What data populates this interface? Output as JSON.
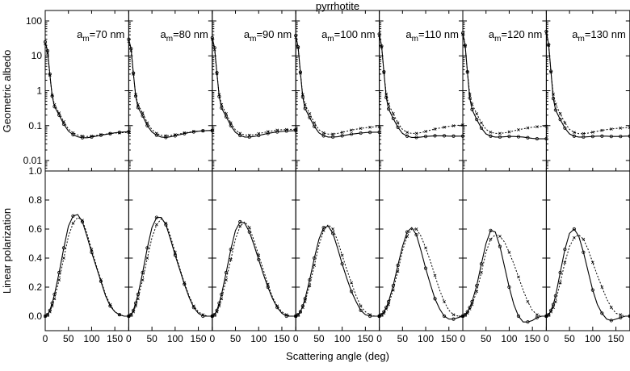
{
  "figure": {
    "title": "pyrrhotite",
    "xlabel": "Scattering angle (deg)",
    "ylabel_top": "Geometric albedo",
    "ylabel_bottom": "Linear polarization"
  },
  "chart_data": {
    "type": "line",
    "title": "pyrrhotite",
    "xlabel": "Scattering angle (deg)",
    "xlim": [
      0,
      180
    ],
    "xticks": [
      "0",
      "50",
      "100",
      "150"
    ],
    "top_row": {
      "ylabel": "Geometric albedo",
      "yscale": "log",
      "ylim": [
        0.005,
        200
      ],
      "yticks": [
        "100",
        "10",
        "1",
        "0.1",
        "0.01"
      ]
    },
    "bottom_row": {
      "ylabel": "Linear polarization",
      "ylim": [
        -0.1,
        1.0
      ],
      "yticks": [
        "1.0",
        "0.8",
        "0.6",
        "0.4",
        "0.2",
        "0.0"
      ]
    },
    "x": [
      0,
      5,
      10,
      15,
      20,
      30,
      40,
      50,
      60,
      70,
      80,
      90,
      100,
      110,
      120,
      130,
      140,
      150,
      160,
      170,
      180
    ],
    "panels": [
      {
        "label_main": "a",
        "label_sub": "m",
        "label_value": "=70 nm",
        "albedo_solid": [
          25,
          14,
          3,
          0.7,
          0.35,
          0.2,
          0.11,
          0.07,
          0.055,
          0.048,
          0.045,
          0.045,
          0.047,
          0.05,
          0.053,
          0.056,
          0.059,
          0.062,
          0.064,
          0.066,
          0.067
        ],
        "albedo_dotted": [
          22,
          12,
          2.8,
          0.75,
          0.4,
          0.23,
          0.13,
          0.08,
          0.062,
          0.054,
          0.05,
          0.049,
          0.05,
          0.052,
          0.055,
          0.057,
          0.059,
          0.061,
          0.062,
          0.063,
          0.064
        ],
        "pol_solid": [
          0.0,
          0.01,
          0.04,
          0.09,
          0.15,
          0.3,
          0.47,
          0.62,
          0.69,
          0.7,
          0.65,
          0.55,
          0.44,
          0.34,
          0.24,
          0.14,
          0.07,
          0.03,
          0.01,
          0.0,
          0.0
        ],
        "pol_dotted": [
          0.0,
          0.01,
          0.03,
          0.07,
          0.12,
          0.25,
          0.4,
          0.55,
          0.64,
          0.68,
          0.66,
          0.57,
          0.46,
          0.35,
          0.25,
          0.15,
          0.08,
          0.03,
          0.01,
          0.0,
          0.0
        ]
      },
      {
        "label_main": "a",
        "label_sub": "m",
        "label_value": "=80 nm",
        "albedo_solid": [
          30,
          16,
          3.2,
          0.7,
          0.33,
          0.19,
          0.1,
          0.066,
          0.053,
          0.047,
          0.046,
          0.048,
          0.051,
          0.055,
          0.059,
          0.063,
          0.066,
          0.069,
          0.071,
          0.072,
          0.073
        ],
        "albedo_dotted": [
          26,
          14,
          3,
          0.78,
          0.4,
          0.23,
          0.12,
          0.077,
          0.06,
          0.053,
          0.051,
          0.052,
          0.055,
          0.058,
          0.062,
          0.065,
          0.068,
          0.07,
          0.071,
          0.072,
          0.072
        ],
        "pol_solid": [
          0.0,
          0.01,
          0.04,
          0.09,
          0.15,
          0.3,
          0.47,
          0.61,
          0.68,
          0.68,
          0.63,
          0.53,
          0.42,
          0.32,
          0.22,
          0.13,
          0.06,
          0.02,
          0.0,
          0.0,
          0.0
        ],
        "pol_dotted": [
          0.0,
          0.01,
          0.03,
          0.07,
          0.12,
          0.25,
          0.4,
          0.54,
          0.63,
          0.67,
          0.64,
          0.55,
          0.44,
          0.33,
          0.23,
          0.14,
          0.07,
          0.03,
          0.01,
          0.0,
          0.0
        ]
      },
      {
        "label_main": "a",
        "label_sub": "m",
        "label_value": "=90 nm",
        "albedo_solid": [
          33,
          17,
          3.3,
          0.68,
          0.32,
          0.18,
          0.1,
          0.064,
          0.052,
          0.047,
          0.047,
          0.049,
          0.052,
          0.056,
          0.06,
          0.063,
          0.066,
          0.068,
          0.07,
          0.071,
          0.072
        ],
        "albedo_dotted": [
          30,
          15,
          3.1,
          0.78,
          0.4,
          0.22,
          0.12,
          0.075,
          0.06,
          0.054,
          0.053,
          0.055,
          0.059,
          0.063,
          0.067,
          0.071,
          0.074,
          0.076,
          0.077,
          0.078,
          0.078
        ],
        "pol_solid": [
          0.0,
          0.01,
          0.04,
          0.09,
          0.15,
          0.3,
          0.46,
          0.59,
          0.65,
          0.64,
          0.58,
          0.49,
          0.39,
          0.29,
          0.2,
          0.12,
          0.06,
          0.02,
          0.0,
          0.0,
          0.0
        ],
        "pol_dotted": [
          0.0,
          0.01,
          0.03,
          0.07,
          0.12,
          0.25,
          0.39,
          0.53,
          0.62,
          0.65,
          0.61,
          0.52,
          0.42,
          0.32,
          0.22,
          0.13,
          0.07,
          0.03,
          0.01,
          0.0,
          0.0
        ]
      },
      {
        "label_main": "a",
        "label_sub": "m",
        "label_value": "=100 nm",
        "albedo_solid": [
          38,
          18,
          3.4,
          0.66,
          0.31,
          0.17,
          0.095,
          0.062,
          0.051,
          0.047,
          0.047,
          0.048,
          0.051,
          0.054,
          0.057,
          0.059,
          0.061,
          0.063,
          0.064,
          0.065,
          0.065
        ],
        "albedo_dotted": [
          34,
          17,
          3.2,
          0.78,
          0.4,
          0.22,
          0.12,
          0.076,
          0.062,
          0.057,
          0.057,
          0.06,
          0.064,
          0.069,
          0.074,
          0.079,
          0.083,
          0.087,
          0.09,
          0.092,
          0.093
        ],
        "pol_solid": [
          0.0,
          0.01,
          0.03,
          0.07,
          0.12,
          0.25,
          0.4,
          0.53,
          0.61,
          0.62,
          0.57,
          0.47,
          0.36,
          0.26,
          0.17,
          0.1,
          0.04,
          0.01,
          0.0,
          0.0,
          0.0
        ],
        "pol_dotted": [
          0.0,
          0.01,
          0.03,
          0.06,
          0.1,
          0.21,
          0.35,
          0.49,
          0.59,
          0.63,
          0.6,
          0.52,
          0.42,
          0.32,
          0.23,
          0.14,
          0.07,
          0.03,
          0.01,
          0.0,
          0.0
        ]
      },
      {
        "label_main": "a",
        "label_sub": "m",
        "label_value": "=110 nm",
        "albedo_solid": [
          42,
          19,
          3.5,
          0.64,
          0.3,
          0.16,
          0.09,
          0.06,
          0.05,
          0.046,
          0.046,
          0.047,
          0.049,
          0.05,
          0.051,
          0.051,
          0.051,
          0.05,
          0.05,
          0.05,
          0.05
        ],
        "albedo_dotted": [
          38,
          18,
          3.3,
          0.8,
          0.41,
          0.22,
          0.12,
          0.078,
          0.064,
          0.06,
          0.06,
          0.063,
          0.068,
          0.074,
          0.08,
          0.085,
          0.09,
          0.095,
          0.099,
          0.102,
          0.104
        ],
        "pol_solid": [
          0.0,
          0.01,
          0.03,
          0.06,
          0.1,
          0.21,
          0.35,
          0.48,
          0.58,
          0.61,
          0.56,
          0.45,
          0.33,
          0.22,
          0.12,
          0.05,
          0.0,
          -0.02,
          -0.02,
          -0.01,
          0.0
        ],
        "pol_dotted": [
          0.0,
          0.01,
          0.02,
          0.05,
          0.08,
          0.18,
          0.31,
          0.45,
          0.55,
          0.6,
          0.6,
          0.55,
          0.47,
          0.38,
          0.28,
          0.18,
          0.1,
          0.04,
          0.01,
          0.0,
          0.0
        ]
      },
      {
        "label_main": "a",
        "label_sub": "m",
        "label_value": "=120 nm",
        "albedo_solid": [
          45,
          20,
          3.5,
          0.62,
          0.29,
          0.15,
          0.085,
          0.058,
          0.05,
          0.047,
          0.047,
          0.048,
          0.049,
          0.049,
          0.048,
          0.047,
          0.045,
          0.043,
          0.042,
          0.042,
          0.042
        ],
        "albedo_dotted": [
          41,
          19,
          3.4,
          0.8,
          0.41,
          0.22,
          0.12,
          0.078,
          0.065,
          0.06,
          0.06,
          0.062,
          0.066,
          0.071,
          0.076,
          0.081,
          0.086,
          0.09,
          0.093,
          0.095,
          0.096
        ],
        "pol_solid": [
          0.0,
          0.01,
          0.03,
          0.06,
          0.1,
          0.21,
          0.36,
          0.5,
          0.59,
          0.58,
          0.48,
          0.34,
          0.2,
          0.08,
          0.0,
          -0.04,
          -0.04,
          -0.03,
          -0.01,
          0.0,
          0.0
        ],
        "pol_dotted": [
          0.0,
          0.01,
          0.02,
          0.05,
          0.08,
          0.17,
          0.3,
          0.44,
          0.53,
          0.56,
          0.55,
          0.51,
          0.44,
          0.36,
          0.27,
          0.18,
          0.1,
          0.04,
          0.01,
          0.0,
          0.0
        ]
      },
      {
        "label_main": "a",
        "label_sub": "m",
        "label_value": "=130 nm",
        "albedo_solid": [
          50,
          21,
          3.6,
          0.6,
          0.28,
          0.15,
          0.085,
          0.058,
          0.05,
          0.047,
          0.047,
          0.048,
          0.049,
          0.05,
          0.05,
          0.05,
          0.049,
          0.049,
          0.049,
          0.05,
          0.05
        ],
        "albedo_dotted": [
          45,
          20,
          3.4,
          0.8,
          0.41,
          0.22,
          0.12,
          0.078,
          0.064,
          0.059,
          0.059,
          0.061,
          0.065,
          0.069,
          0.073,
          0.077,
          0.08,
          0.083,
          0.085,
          0.087,
          0.088
        ],
        "pol_solid": [
          0.0,
          0.01,
          0.04,
          0.08,
          0.14,
          0.3,
          0.46,
          0.57,
          0.6,
          0.55,
          0.44,
          0.31,
          0.18,
          0.08,
          0.02,
          -0.02,
          -0.03,
          -0.02,
          -0.01,
          0.0,
          0.0
        ],
        "pol_dotted": [
          0.0,
          0.01,
          0.03,
          0.06,
          0.1,
          0.23,
          0.37,
          0.48,
          0.54,
          0.56,
          0.53,
          0.46,
          0.37,
          0.28,
          0.2,
          0.12,
          0.06,
          0.02,
          0.01,
          0.0,
          0.0
        ]
      }
    ]
  }
}
